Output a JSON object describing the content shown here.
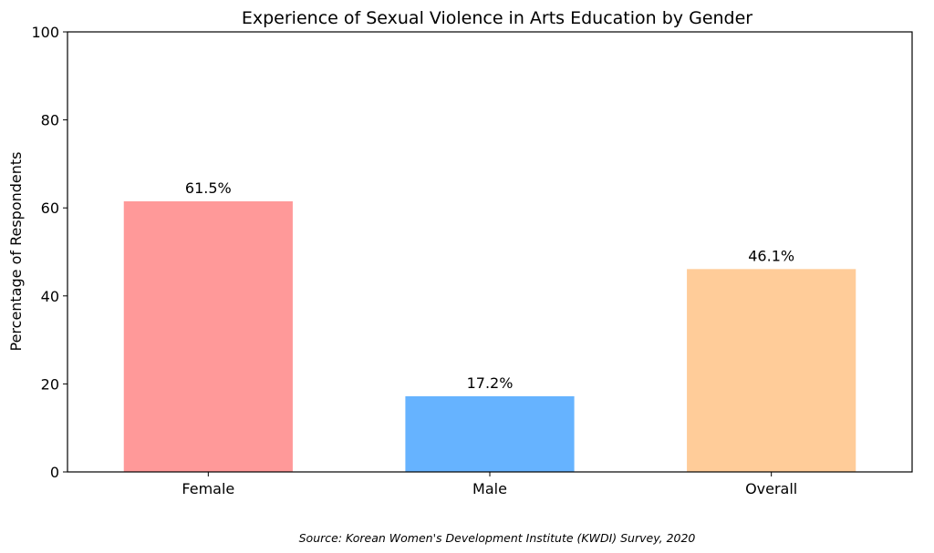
{
  "chart_data": {
    "type": "bar",
    "title": "Experience of Sexual Violence in Arts Education by Gender",
    "xlabel": "",
    "ylabel": "Percentage of Respondents",
    "categories": [
      "Female",
      "Male",
      "Overall"
    ],
    "values": [
      61.5,
      17.2,
      46.1
    ],
    "data_labels": [
      "61.5%",
      "17.2%",
      "46.1%"
    ],
    "colors": [
      "#ff9999",
      "#66b3ff",
      "#ffcc99"
    ],
    "ylim": [
      0,
      100
    ],
    "yticks": [
      0,
      20,
      40,
      60,
      80,
      100
    ],
    "ytick_labels": [
      "0",
      "20",
      "40",
      "60",
      "80",
      "100"
    ],
    "grid": false,
    "legend": "none"
  },
  "footer": {
    "source": "Source: Korean Women's Development Institute (KWDI) Survey, 2020"
  }
}
